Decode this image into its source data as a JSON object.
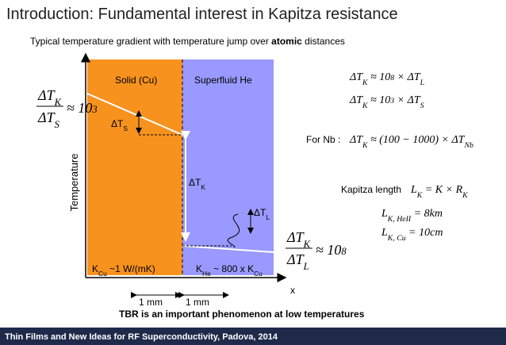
{
  "title": "Introduction: Fundamental interest in Kapitza resistance",
  "subtitle": [
    {
      "text": "Typical temperature gradient with temperature jump over "
    },
    {
      "text": "atomic",
      "style": "bold"
    },
    {
      "text": " distances"
    }
  ],
  "diagram": {
    "regions": [
      "Solid (Cu)",
      "Superfluid He"
    ],
    "axis_labels": {
      "y": "Temperature",
      "x": "x"
    },
    "delta_labels": [
      [
        {
          "text": "ΔT"
        },
        {
          "text": "S",
          "pos": "sub"
        }
      ],
      [
        {
          "text": "ΔT"
        },
        {
          "text": "K",
          "pos": "sub"
        }
      ],
      [
        {
          "text": "ΔT"
        },
        {
          "text": "L",
          "pos": "sub"
        }
      ]
    ],
    "conductivities": [
      [
        {
          "text": "K"
        },
        {
          "text": "Cu",
          "pos": "sub"
        },
        {
          "text": " ~1 W/(mK)"
        }
      ],
      [
        {
          "text": "K"
        },
        {
          "text": "He",
          "pos": "sub"
        },
        {
          "text": " ~ 800 x K"
        },
        {
          "text": "Cu",
          "pos": "sub"
        }
      ]
    ],
    "widths": [
      "1 mm",
      "1 mm"
    ]
  },
  "ratios": [
    {
      "numerator": [
        {
          "text": "ΔT"
        },
        {
          "text": "K",
          "pos": "sub"
        }
      ],
      "denominator": [
        {
          "text": "ΔT"
        },
        {
          "text": "S",
          "pos": "sub"
        }
      ],
      "relation": [
        {
          "text": "≈ 10"
        },
        {
          "text": "3",
          "pos": "sup"
        }
      ]
    },
    {
      "numerator": [
        {
          "text": "ΔT"
        },
        {
          "text": "K",
          "pos": "sub"
        }
      ],
      "denominator": [
        {
          "text": "ΔT"
        },
        {
          "text": "L",
          "pos": "sub"
        }
      ],
      "relation": [
        {
          "text": "≈ 10"
        },
        {
          "text": "8",
          "pos": "sup"
        }
      ]
    }
  ],
  "relations": [
    [
      {
        "text": "ΔT"
      },
      {
        "text": "K",
        "pos": "sub"
      },
      {
        "text": " ≈ 10"
      },
      {
        "text": "8",
        "pos": "sup"
      },
      {
        "text": " × ΔT"
      },
      {
        "text": "L",
        "pos": "sub"
      }
    ],
    [
      {
        "text": "ΔT"
      },
      {
        "text": "K",
        "pos": "sub"
      },
      {
        "text": " ≈ 10"
      },
      {
        "text": "3",
        "pos": "sup"
      },
      {
        "text": " × ΔT"
      },
      {
        "text": "S",
        "pos": "sub"
      }
    ],
    [
      {
        "text": "ΔT"
      },
      {
        "text": "K",
        "pos": "sub"
      },
      {
        "text": " ≈ (100 − 1000) × ΔT"
      },
      {
        "text": "Nb",
        "pos": "sub"
      }
    ],
    [
      {
        "text": "L"
      },
      {
        "text": "K",
        "pos": "sub"
      },
      {
        "text": " = K × R"
      },
      {
        "text": "K",
        "pos": "sub"
      }
    ],
    [
      {
        "text": "L"
      },
      {
        "text": "K, HeII",
        "pos": "sub"
      },
      {
        "text": " = 8km"
      }
    ],
    [
      {
        "text": "L"
      },
      {
        "text": "K, Cu",
        "pos": "sub"
      },
      {
        "text": " = 10cm"
      }
    ]
  ],
  "nb_label": "For Nb :",
  "kapitza_label": "Kapitza length",
  "conclusion": "TBR is an important phenomenon  at low temperatures",
  "footer": "Thin Films and New Ideas for RF Superconductivity, Padova, 2014"
}
